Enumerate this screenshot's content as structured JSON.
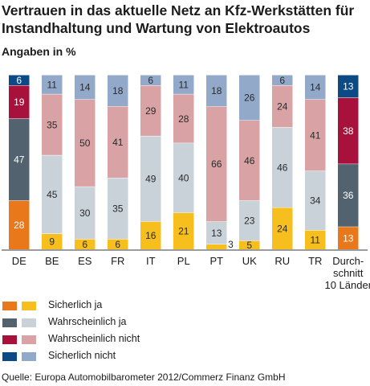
{
  "title": "Vertrauen in das aktuelle Netz an Kfz-Werkstätten für Instandhaltung und Wartung von Elektroautos",
  "subtitle": "Angaben in %",
  "source": "Quelle: Europa Automobilbarometer 2012/Commerz Finanz GmbH",
  "colors": {
    "sicherlich_ja_de": "#e8781a",
    "sicherlich_ja": "#f7bf1e",
    "wahrscheinlich_ja_de": "#52636f",
    "wahrscheinlich_ja": "#c9d2d9",
    "wahrscheinlich_nicht_de": "#a8113c",
    "wahrscheinlich_nicht": "#d9a3a6",
    "sicherlich_nicht_de": "#0c4a86",
    "sicherlich_nicht": "#93a9c9"
  },
  "legend": [
    {
      "label": "Sicherlich ja",
      "colors": [
        "#e8781a",
        "#f7bf1e"
      ]
    },
    {
      "label": "Wahrscheinlich ja",
      "colors": [
        "#52636f",
        "#c9d2d9"
      ]
    },
    {
      "label": "Wahrscheinlich nicht",
      "colors": [
        "#a8113c",
        "#d9a3a6"
      ]
    },
    {
      "label": "Sicherlich nicht",
      "colors": [
        "#0c4a86",
        "#93a9c9"
      ]
    }
  ],
  "chart_data": {
    "type": "bar",
    "stacked": true,
    "title": "Vertrauen in das aktuelle Netz an Kfz-Werkstätten für Instandhaltung und Wartung von Elektroautos",
    "subtitle": "Angaben in %",
    "categories": [
      "DE",
      "BE",
      "ES",
      "FR",
      "IT",
      "PL",
      "PT",
      "UK",
      "RU",
      "TR",
      "Durch-\nschnitt\n10 Länder"
    ],
    "ylim": [
      0,
      100
    ],
    "series": [
      {
        "name": "Sicherlich ja",
        "values": [
          28,
          9,
          6,
          6,
          16,
          21,
          3,
          5,
          24,
          11,
          13
        ]
      },
      {
        "name": "Wahrscheinlich ja",
        "values": [
          47,
          45,
          30,
          35,
          49,
          40,
          13,
          23,
          46,
          34,
          36
        ]
      },
      {
        "name": "Wahrscheinlich nicht",
        "values": [
          19,
          35,
          50,
          41,
          29,
          28,
          66,
          46,
          24,
          41,
          38
        ]
      },
      {
        "name": "Sicherlich nicht",
        "values": [
          6,
          11,
          14,
          18,
          6,
          11,
          18,
          26,
          6,
          14,
          13
        ]
      }
    ],
    "highlighted_categories": [
      "DE",
      "Durch-\nschnitt\n10 Länder"
    ],
    "legend_position": "bottom-left"
  }
}
